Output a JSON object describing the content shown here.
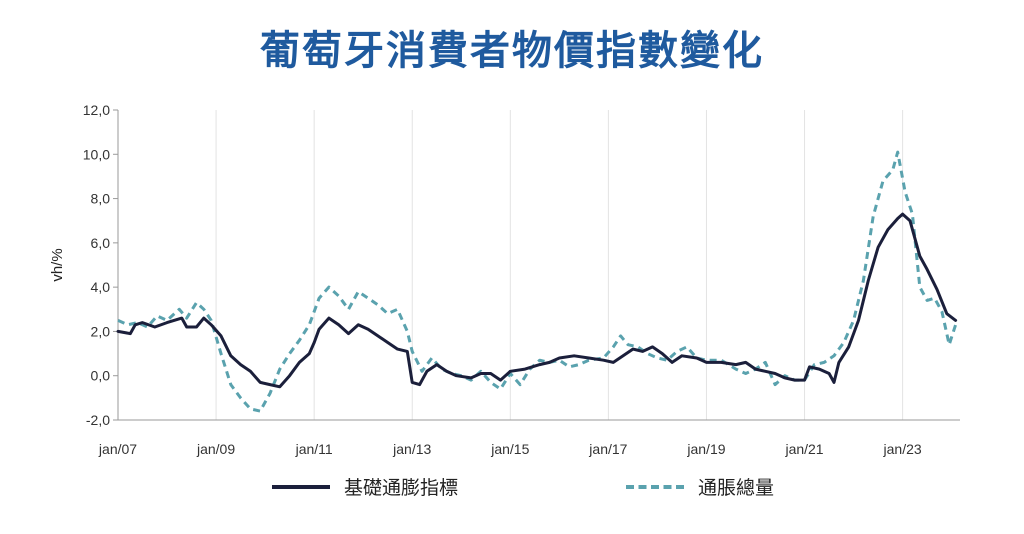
{
  "title": "葡萄牙消費者物價指數變化",
  "chart_data": {
    "type": "line",
    "ylabel": "vh/%",
    "ylim": [
      -2.0,
      12.0
    ],
    "ytick_labels": [
      "12,0",
      "10,0",
      "8,0",
      "6,0",
      "4,0",
      "2,0",
      "0,0",
      "-2,0"
    ],
    "ytick_values": [
      12,
      10,
      8,
      6,
      4,
      2,
      0,
      -2
    ],
    "xlim": [
      2007.0,
      2024.17
    ],
    "xtick_labels": [
      "jan/07",
      "jan/09",
      "jan/11",
      "jan/13",
      "jan/15",
      "jan/17",
      "jan/19",
      "jan/21",
      "jan/23"
    ],
    "xtick_values": [
      2007,
      2009,
      2011,
      2013,
      2015,
      2017,
      2019,
      2021,
      2023
    ],
    "grid": "vertical",
    "legend_position": "bottom",
    "series": [
      {
        "name": "基礎通膨指標",
        "color": "#1b1f3b",
        "style": "solid",
        "points": [
          [
            2007.0,
            2.0
          ],
          [
            2007.25,
            1.9
          ],
          [
            2007.35,
            2.3
          ],
          [
            2007.5,
            2.4
          ],
          [
            2007.75,
            2.2
          ],
          [
            2008.0,
            2.4
          ],
          [
            2008.3,
            2.6
          ],
          [
            2008.4,
            2.2
          ],
          [
            2008.6,
            2.2
          ],
          [
            2008.75,
            2.6
          ],
          [
            2008.9,
            2.3
          ],
          [
            2009.1,
            1.8
          ],
          [
            2009.3,
            0.9
          ],
          [
            2009.5,
            0.5
          ],
          [
            2009.7,
            0.2
          ],
          [
            2009.9,
            -0.3
          ],
          [
            2010.1,
            -0.4
          ],
          [
            2010.3,
            -0.5
          ],
          [
            2010.5,
            0.0
          ],
          [
            2010.7,
            0.6
          ],
          [
            2010.9,
            1.0
          ],
          [
            2011.0,
            1.5
          ],
          [
            2011.1,
            2.1
          ],
          [
            2011.3,
            2.6
          ],
          [
            2011.5,
            2.3
          ],
          [
            2011.7,
            1.9
          ],
          [
            2011.9,
            2.3
          ],
          [
            2012.1,
            2.1
          ],
          [
            2012.3,
            1.8
          ],
          [
            2012.5,
            1.5
          ],
          [
            2012.7,
            1.2
          ],
          [
            2012.9,
            1.1
          ],
          [
            2013.0,
            -0.3
          ],
          [
            2013.15,
            -0.4
          ],
          [
            2013.3,
            0.2
          ],
          [
            2013.5,
            0.5
          ],
          [
            2013.7,
            0.2
          ],
          [
            2013.9,
            0.0
          ],
          [
            2014.2,
            -0.1
          ],
          [
            2014.4,
            0.1
          ],
          [
            2014.6,
            0.1
          ],
          [
            2014.8,
            -0.2
          ],
          [
            2015.0,
            0.2
          ],
          [
            2015.3,
            0.3
          ],
          [
            2015.6,
            0.5
          ],
          [
            2015.8,
            0.6
          ],
          [
            2016.0,
            0.8
          ],
          [
            2016.3,
            0.9
          ],
          [
            2016.6,
            0.8
          ],
          [
            2016.9,
            0.7
          ],
          [
            2017.1,
            0.6
          ],
          [
            2017.3,
            0.9
          ],
          [
            2017.5,
            1.2
          ],
          [
            2017.7,
            1.1
          ],
          [
            2017.9,
            1.3
          ],
          [
            2018.1,
            1.0
          ],
          [
            2018.3,
            0.6
          ],
          [
            2018.5,
            0.9
          ],
          [
            2018.8,
            0.8
          ],
          [
            2019.0,
            0.6
          ],
          [
            2019.3,
            0.6
          ],
          [
            2019.6,
            0.5
          ],
          [
            2019.8,
            0.6
          ],
          [
            2020.0,
            0.3
          ],
          [
            2020.2,
            0.2
          ],
          [
            2020.4,
            0.1
          ],
          [
            2020.6,
            -0.1
          ],
          [
            2020.8,
            -0.2
          ],
          [
            2021.0,
            -0.2
          ],
          [
            2021.1,
            0.4
          ],
          [
            2021.3,
            0.3
          ],
          [
            2021.5,
            0.1
          ],
          [
            2021.6,
            -0.3
          ],
          [
            2021.7,
            0.6
          ],
          [
            2021.9,
            1.3
          ],
          [
            2022.1,
            2.5
          ],
          [
            2022.3,
            4.3
          ],
          [
            2022.5,
            5.8
          ],
          [
            2022.7,
            6.6
          ],
          [
            2022.9,
            7.1
          ],
          [
            2023.0,
            7.3
          ],
          [
            2023.15,
            7.0
          ],
          [
            2023.35,
            5.4
          ],
          [
            2023.5,
            4.8
          ],
          [
            2023.7,
            3.9
          ],
          [
            2023.9,
            2.8
          ],
          [
            2024.08,
            2.5
          ]
        ]
      },
      {
        "name": "通脹總量",
        "color": "#5aa2ae",
        "style": "dashed",
        "points": [
          [
            2007.0,
            2.5
          ],
          [
            2007.2,
            2.3
          ],
          [
            2007.4,
            2.4
          ],
          [
            2007.6,
            2.2
          ],
          [
            2007.8,
            2.7
          ],
          [
            2008.0,
            2.5
          ],
          [
            2008.25,
            3.0
          ],
          [
            2008.4,
            2.6
          ],
          [
            2008.6,
            3.3
          ],
          [
            2008.75,
            3.0
          ],
          [
            2008.9,
            2.5
          ],
          [
            2009.1,
            1.0
          ],
          [
            2009.3,
            -0.4
          ],
          [
            2009.5,
            -1.0
          ],
          [
            2009.7,
            -1.5
          ],
          [
            2009.9,
            -1.6
          ],
          [
            2010.1,
            -0.8
          ],
          [
            2010.3,
            0.3
          ],
          [
            2010.5,
            1.0
          ],
          [
            2010.7,
            1.6
          ],
          [
            2010.9,
            2.3
          ],
          [
            2011.1,
            3.5
          ],
          [
            2011.3,
            4.0
          ],
          [
            2011.5,
            3.6
          ],
          [
            2011.7,
            3.0
          ],
          [
            2011.9,
            3.8
          ],
          [
            2012.1,
            3.5
          ],
          [
            2012.3,
            3.2
          ],
          [
            2012.5,
            2.8
          ],
          [
            2012.7,
            3.0
          ],
          [
            2012.9,
            2.0
          ],
          [
            2013.0,
            1.1
          ],
          [
            2013.2,
            0.2
          ],
          [
            2013.4,
            0.8
          ],
          [
            2013.6,
            0.3
          ],
          [
            2013.8,
            0.1
          ],
          [
            2014.0,
            0.0
          ],
          [
            2014.2,
            -0.2
          ],
          [
            2014.4,
            0.2
          ],
          [
            2014.6,
            -0.3
          ],
          [
            2014.8,
            -0.6
          ],
          [
            2015.0,
            0.1
          ],
          [
            2015.2,
            -0.4
          ],
          [
            2015.4,
            0.3
          ],
          [
            2015.6,
            0.7
          ],
          [
            2015.8,
            0.6
          ],
          [
            2016.0,
            0.7
          ],
          [
            2016.2,
            0.4
          ],
          [
            2016.4,
            0.5
          ],
          [
            2016.6,
            0.7
          ],
          [
            2016.9,
            0.8
          ],
          [
            2017.1,
            1.3
          ],
          [
            2017.25,
            1.8
          ],
          [
            2017.4,
            1.4
          ],
          [
            2017.6,
            1.3
          ],
          [
            2017.8,
            1.0
          ],
          [
            2018.0,
            0.8
          ],
          [
            2018.2,
            0.7
          ],
          [
            2018.4,
            1.1
          ],
          [
            2018.6,
            1.3
          ],
          [
            2018.8,
            0.8
          ],
          [
            2019.0,
            0.7
          ],
          [
            2019.3,
            0.7
          ],
          [
            2019.6,
            0.3
          ],
          [
            2019.8,
            0.1
          ],
          [
            2020.0,
            0.3
          ],
          [
            2020.2,
            0.6
          ],
          [
            2020.4,
            -0.4
          ],
          [
            2020.6,
            0.0
          ],
          [
            2020.8,
            -0.2
          ],
          [
            2021.0,
            -0.2
          ],
          [
            2021.2,
            0.5
          ],
          [
            2021.4,
            0.6
          ],
          [
            2021.6,
            0.9
          ],
          [
            2021.8,
            1.5
          ],
          [
            2022.0,
            2.5
          ],
          [
            2022.2,
            4.3
          ],
          [
            2022.4,
            7.2
          ],
          [
            2022.6,
            8.8
          ],
          [
            2022.8,
            9.3
          ],
          [
            2022.9,
            10.1
          ],
          [
            2023.05,
            8.3
          ],
          [
            2023.2,
            7.3
          ],
          [
            2023.35,
            4.0
          ],
          [
            2023.5,
            3.4
          ],
          [
            2023.65,
            3.5
          ],
          [
            2023.8,
            2.9
          ],
          [
            2023.95,
            1.4
          ],
          [
            2024.08,
            2.3
          ]
        ]
      }
    ]
  }
}
